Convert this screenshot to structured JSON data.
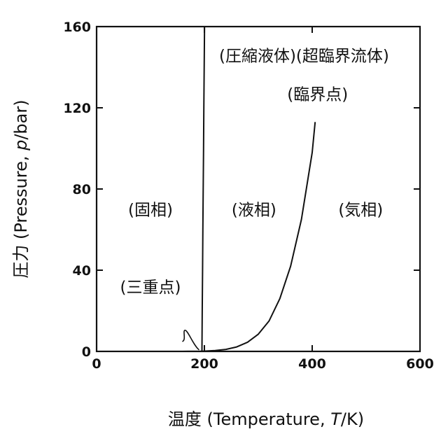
{
  "chart_data": {
    "type": "line",
    "title": "",
    "xlabel_prefix": "温度 (Temperature, ",
    "xlabel_var": "T",
    "xlabel_suffix": "/K)",
    "ylabel_prefix": "圧力 (Pressure, ",
    "ylabel_var": "p",
    "ylabel_suffix": "/bar)",
    "xlim": [
      0,
      600
    ],
    "ylim": [
      0,
      160
    ],
    "xticks": [
      0,
      200,
      400,
      600
    ],
    "yticks": [
      0,
      40,
      80,
      120,
      160
    ],
    "xtick_labels": [
      "0",
      "200",
      "400",
      "600"
    ],
    "ytick_labels": [
      "0",
      "40",
      "80",
      "120",
      "160"
    ],
    "grid": false,
    "series": [
      {
        "role": "melting",
        "points": [
          [
            195.4,
            0.06
          ],
          [
            196.0,
            20
          ],
          [
            196.6,
            40
          ],
          [
            197.2,
            60
          ],
          [
            197.8,
            80
          ],
          [
            198.4,
            100
          ],
          [
            199.0,
            120
          ],
          [
            199.6,
            140
          ],
          [
            200.2,
            160
          ]
        ]
      },
      {
        "role": "sublimation",
        "points": [
          [
            160,
            0.01
          ],
          [
            170,
            0.02
          ],
          [
            180,
            0.03
          ],
          [
            190,
            0.05
          ],
          [
            195.4,
            0.06
          ]
        ]
      },
      {
        "role": "vaporization",
        "points": [
          [
            195.4,
            0.06
          ],
          [
            220,
            0.4
          ],
          [
            240,
            1.0
          ],
          [
            260,
            2.2
          ],
          [
            280,
            4.5
          ],
          [
            300,
            8.5
          ],
          [
            320,
            15
          ],
          [
            340,
            26
          ],
          [
            360,
            42
          ],
          [
            380,
            65
          ],
          [
            400,
            98
          ],
          [
            405.5,
            113
          ]
        ]
      }
    ],
    "annotations": [
      {
        "text": "(圧縮液体)(超臨界流体)",
        "x": 385,
        "y": 143
      },
      {
        "text": "(臨界点)",
        "x": 410,
        "y": 124
      },
      {
        "text": "(固相)",
        "x": 100,
        "y": 67
      },
      {
        "text": "(液相)",
        "x": 292,
        "y": 67
      },
      {
        "text": "(気相)",
        "x": 490,
        "y": 67
      },
      {
        "text": "(三重点)",
        "x": 100,
        "y": 29
      }
    ]
  }
}
